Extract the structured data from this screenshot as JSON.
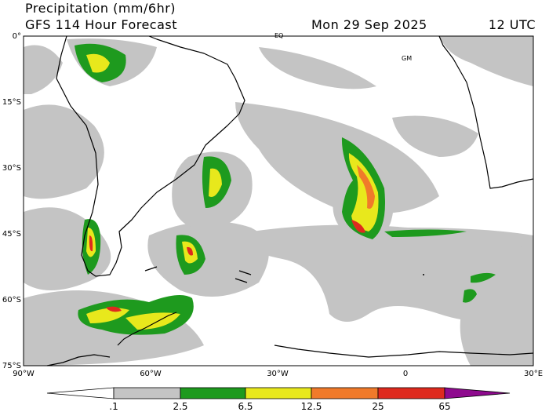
{
  "header": {
    "title": "Precipitation (mm/6hr)",
    "subtitle": "GFS 114 Hour Forecast",
    "date": "Mon 29 Sep 2025",
    "time": "12 UTC"
  },
  "map": {
    "lat_labels": [
      "0°",
      "15°S",
      "30°S",
      "45°S",
      "60°S",
      "75°S"
    ],
    "lon_labels": [
      "90°W",
      "60°W",
      "30°W",
      "0",
      "30°E"
    ],
    "place_labels": [
      "EQ",
      "GM"
    ]
  },
  "legend": {
    "labels": [
      ".1",
      "2.5",
      "6.5",
      "12.5",
      "25",
      "65"
    ]
  }
}
